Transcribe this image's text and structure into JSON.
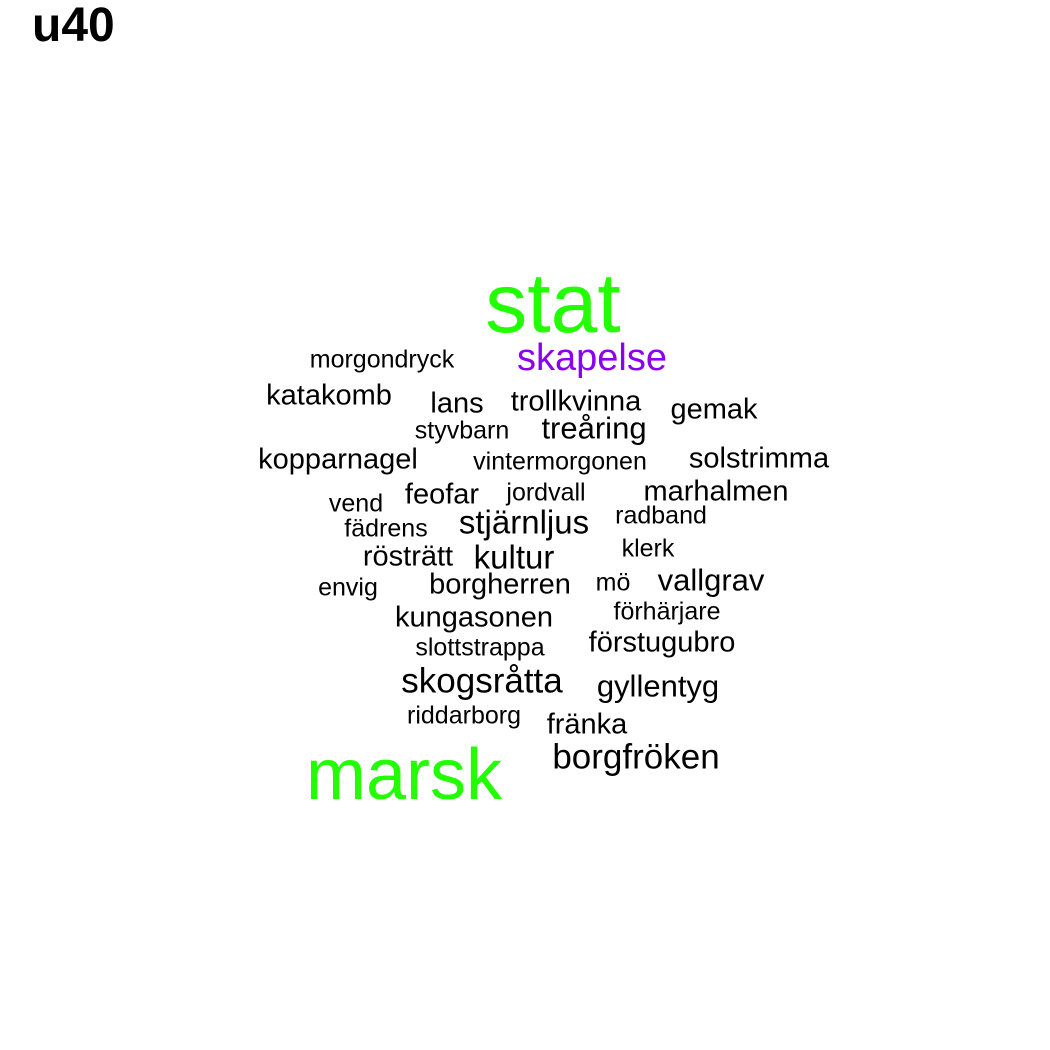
{
  "title": "u40",
  "colors": {
    "background": "#ffffff",
    "default_word": "#000000",
    "green": "#22ff00",
    "purple": "#8b00ee"
  },
  "words": [
    {
      "id": "stat",
      "text": "stat",
      "color": "green"
    },
    {
      "id": "marsk",
      "text": "marsk",
      "color": "green"
    },
    {
      "id": "skapelse",
      "text": "skapelse",
      "color": "purple"
    },
    {
      "id": "morgondryck",
      "text": "morgondryck"
    },
    {
      "id": "katakomb",
      "text": "katakomb"
    },
    {
      "id": "lans",
      "text": "lans"
    },
    {
      "id": "trollkvinna",
      "text": "trollkvinna"
    },
    {
      "id": "gemak",
      "text": "gemak"
    },
    {
      "id": "styvbarn",
      "text": "styvbarn"
    },
    {
      "id": "trearing",
      "text": "treåring"
    },
    {
      "id": "kopparnagel",
      "text": "kopparnagel"
    },
    {
      "id": "vintermorgonen",
      "text": "vintermorgonen"
    },
    {
      "id": "solstrimma",
      "text": "solstrimma"
    },
    {
      "id": "vend",
      "text": "vend"
    },
    {
      "id": "feofar",
      "text": "feofar"
    },
    {
      "id": "jordvall",
      "text": "jordvall"
    },
    {
      "id": "marhalmen",
      "text": "marhalmen"
    },
    {
      "id": "fadrens",
      "text": "fädrens"
    },
    {
      "id": "stjarnljus",
      "text": "stjärnljus"
    },
    {
      "id": "radband",
      "text": "radband"
    },
    {
      "id": "rostratt",
      "text": "rösträtt"
    },
    {
      "id": "kultur",
      "text": "kultur"
    },
    {
      "id": "klerk",
      "text": "klerk"
    },
    {
      "id": "envig",
      "text": "envig"
    },
    {
      "id": "borgherren",
      "text": "borgherren"
    },
    {
      "id": "mo",
      "text": "mö"
    },
    {
      "id": "vallgrav",
      "text": "vallgrav"
    },
    {
      "id": "kungasonen",
      "text": "kungasonen"
    },
    {
      "id": "forharjare",
      "text": "förhärjare"
    },
    {
      "id": "slottstrappa",
      "text": "slottstrappa"
    },
    {
      "id": "forstugubro",
      "text": "förstugubro"
    },
    {
      "id": "skogsratta",
      "text": "skogsråtta"
    },
    {
      "id": "gyllentyg",
      "text": "gyllentyg"
    },
    {
      "id": "riddarborg",
      "text": "riddarborg"
    },
    {
      "id": "franka",
      "text": "fränka"
    },
    {
      "id": "borgfroken",
      "text": "borgfröken"
    }
  ]
}
